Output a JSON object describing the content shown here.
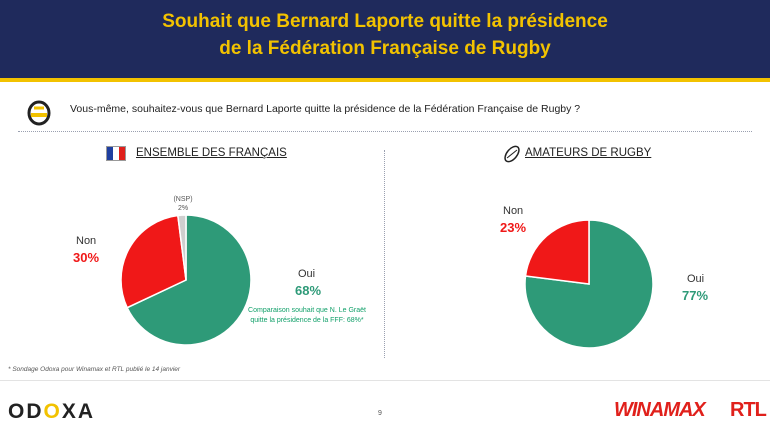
{
  "header": {
    "title_line1": "Souhait que Bernard Laporte quitte la présidence",
    "title_line2": "de la Fédération Française de Rugby"
  },
  "question": "Vous-même, souhaitez-vous que Bernard Laporte quitte la présidence de la Fédération Française de Rugby ?",
  "note": "Comparaison souhait que N. Le Graët quitte la présidence de la FFF: 68%*",
  "footnote": "* Sondage Odoxa pour Winamax et RTL publié le 14 janvier",
  "page_number": "9",
  "brand": {
    "odoxa_part1": "OD",
    "odoxa_part2": "O",
    "odoxa_part3": "XA",
    "winamax": "WINAMAX",
    "rtl": "RTL"
  },
  "colors": {
    "oui": "#2e9a78",
    "non": "#f01818",
    "nsp": "#cfcfcf",
    "header": "#1f2a5c",
    "accent": "#f2c200"
  },
  "icons": {
    "question_logo": "odoxa-logo-icon",
    "flag": "french-flag-icon",
    "ball": "rugby-ball-icon"
  },
  "chart_data": [
    {
      "type": "pie",
      "title": "ENSEMBLE DES FRANÇAIS",
      "slices": [
        {
          "label": "Oui",
          "value": 68,
          "display": "68%",
          "color": "#2e9a78"
        },
        {
          "label": "Non",
          "value": 30,
          "display": "30%",
          "color": "#f01818"
        },
        {
          "label": "(NSP)",
          "value": 2,
          "display": "2%",
          "color": "#cfcfcf"
        }
      ]
    },
    {
      "type": "pie",
      "title": "AMATEURS DE RUGBY",
      "slices": [
        {
          "label": "Oui",
          "value": 77,
          "display": "77%",
          "color": "#2e9a78"
        },
        {
          "label": "Non",
          "value": 23,
          "display": "23%",
          "color": "#f01818"
        }
      ]
    }
  ]
}
